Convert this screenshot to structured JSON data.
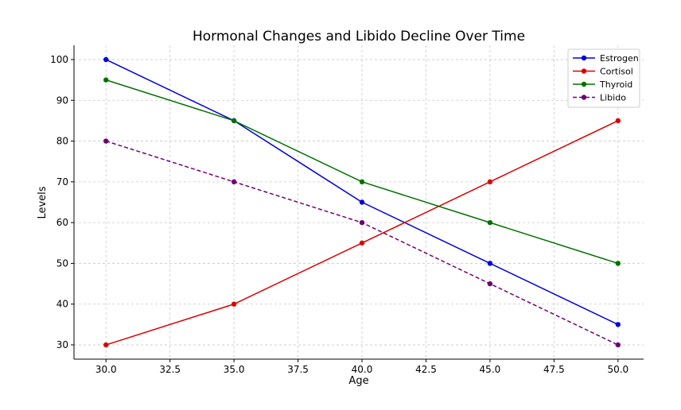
{
  "chart_data": {
    "type": "line",
    "title": "Hormonal Changes and Libido Decline Over Time",
    "xlabel": "Age",
    "ylabel": "Levels",
    "x": [
      30,
      35,
      40,
      45,
      50
    ],
    "xlim": [
      28.75,
      51.0
    ],
    "ylim": [
      26.5,
      103.5
    ],
    "xticks": [
      30,
      32.5,
      35,
      37.5,
      40,
      42.5,
      45,
      47.5,
      50
    ],
    "xtick_labels": [
      "30.0",
      "32.5",
      "35.0",
      "37.5",
      "40.0",
      "42.5",
      "45.0",
      "47.5",
      "50.0"
    ],
    "yticks": [
      30,
      40,
      50,
      60,
      70,
      80,
      90,
      100
    ],
    "ytick_labels": [
      "30",
      "40",
      "50",
      "60",
      "70",
      "80",
      "90",
      "100"
    ],
    "grid": true,
    "legend_position": "top-right",
    "series": [
      {
        "name": "Estrogen",
        "values": [
          100,
          85,
          65,
          50,
          35
        ],
        "color": "#0000dd",
        "dashed": false
      },
      {
        "name": "Cortisol",
        "values": [
          30,
          40,
          55,
          70,
          85
        ],
        "color": "#dd0000",
        "dashed": false
      },
      {
        "name": "Thyroid",
        "values": [
          95,
          85,
          70,
          60,
          50
        ],
        "color": "#007000",
        "dashed": false
      },
      {
        "name": "Libido",
        "values": [
          80,
          70,
          60,
          45,
          30
        ],
        "color": "#700070",
        "dashed": true
      }
    ]
  }
}
